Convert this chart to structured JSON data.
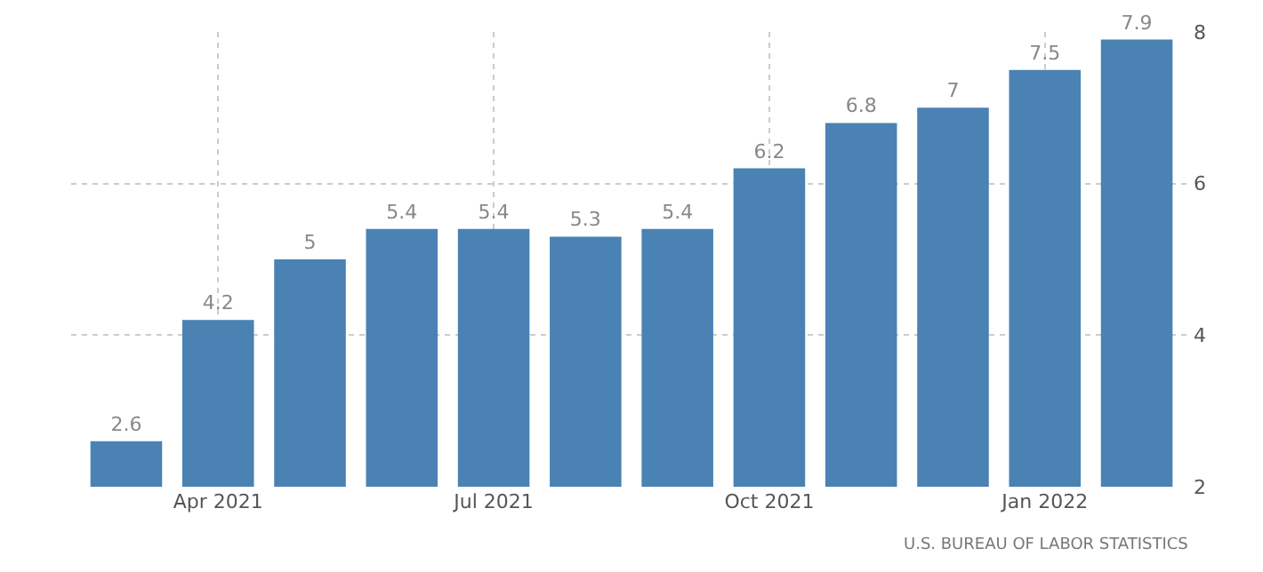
{
  "chart_data": {
    "type": "bar",
    "categories": [
      null,
      "Apr 2021",
      null,
      null,
      "Jul 2021",
      null,
      null,
      "Oct 2021",
      null,
      null,
      "Jan 2022",
      null
    ],
    "values": [
      2.6,
      4.2,
      5,
      5.4,
      5.4,
      5.3,
      5.4,
      6.2,
      6.8,
      7,
      7.5,
      7.9
    ],
    "color": "#4a82b4",
    "ylim": [
      2,
      8
    ],
    "yticks": [
      2,
      4,
      6,
      8
    ],
    "grid": true,
    "data_labels": true,
    "legend": false,
    "annotations": [
      "U.S. BUREAU OF LABOR STATISTICS"
    ]
  }
}
